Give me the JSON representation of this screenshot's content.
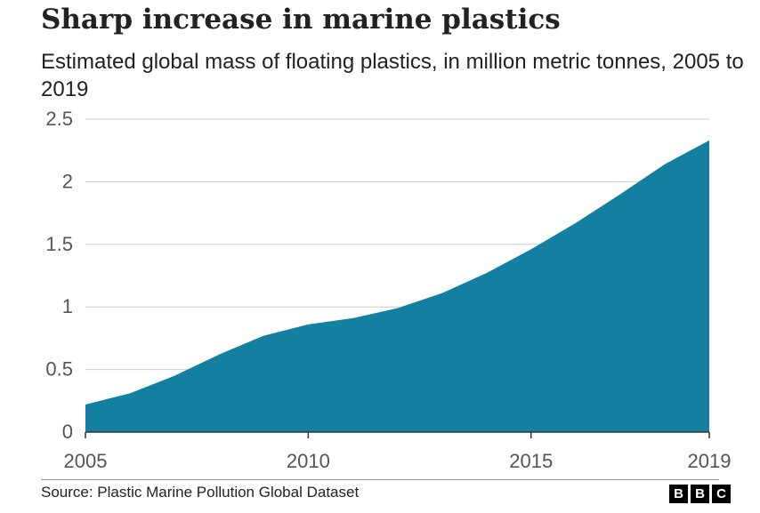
{
  "chart_data": {
    "type": "area",
    "title": "Sharp increase in marine plastics",
    "subtitle": "Estimated global mass of floating plastics, in million metric tonnes, 2005 to 2019",
    "x": [
      2005,
      2006,
      2007,
      2008,
      2009,
      2010,
      2011,
      2012,
      2013,
      2014,
      2015,
      2016,
      2017,
      2018,
      2019
    ],
    "series": [
      {
        "values": [
          0.22,
          0.31,
          0.45,
          0.62,
          0.77,
          0.86,
          0.91,
          0.99,
          1.11,
          1.27,
          1.46,
          1.67,
          1.9,
          2.14,
          2.33
        ]
      }
    ],
    "xlim": [
      2005,
      2019
    ],
    "ylim": [
      0,
      2.5
    ],
    "x_ticks": [
      "2005",
      "2010",
      "2015",
      "2019"
    ],
    "y_ticks": [
      "0",
      "0.5",
      "1",
      "1.5",
      "2",
      "2.5"
    ],
    "grid": true,
    "fill_color": "#1380A1",
    "source": "Source: Plastic Marine Pollution Global Dataset"
  },
  "branding": {
    "logo_letters": [
      "B",
      "B",
      "C"
    ]
  }
}
